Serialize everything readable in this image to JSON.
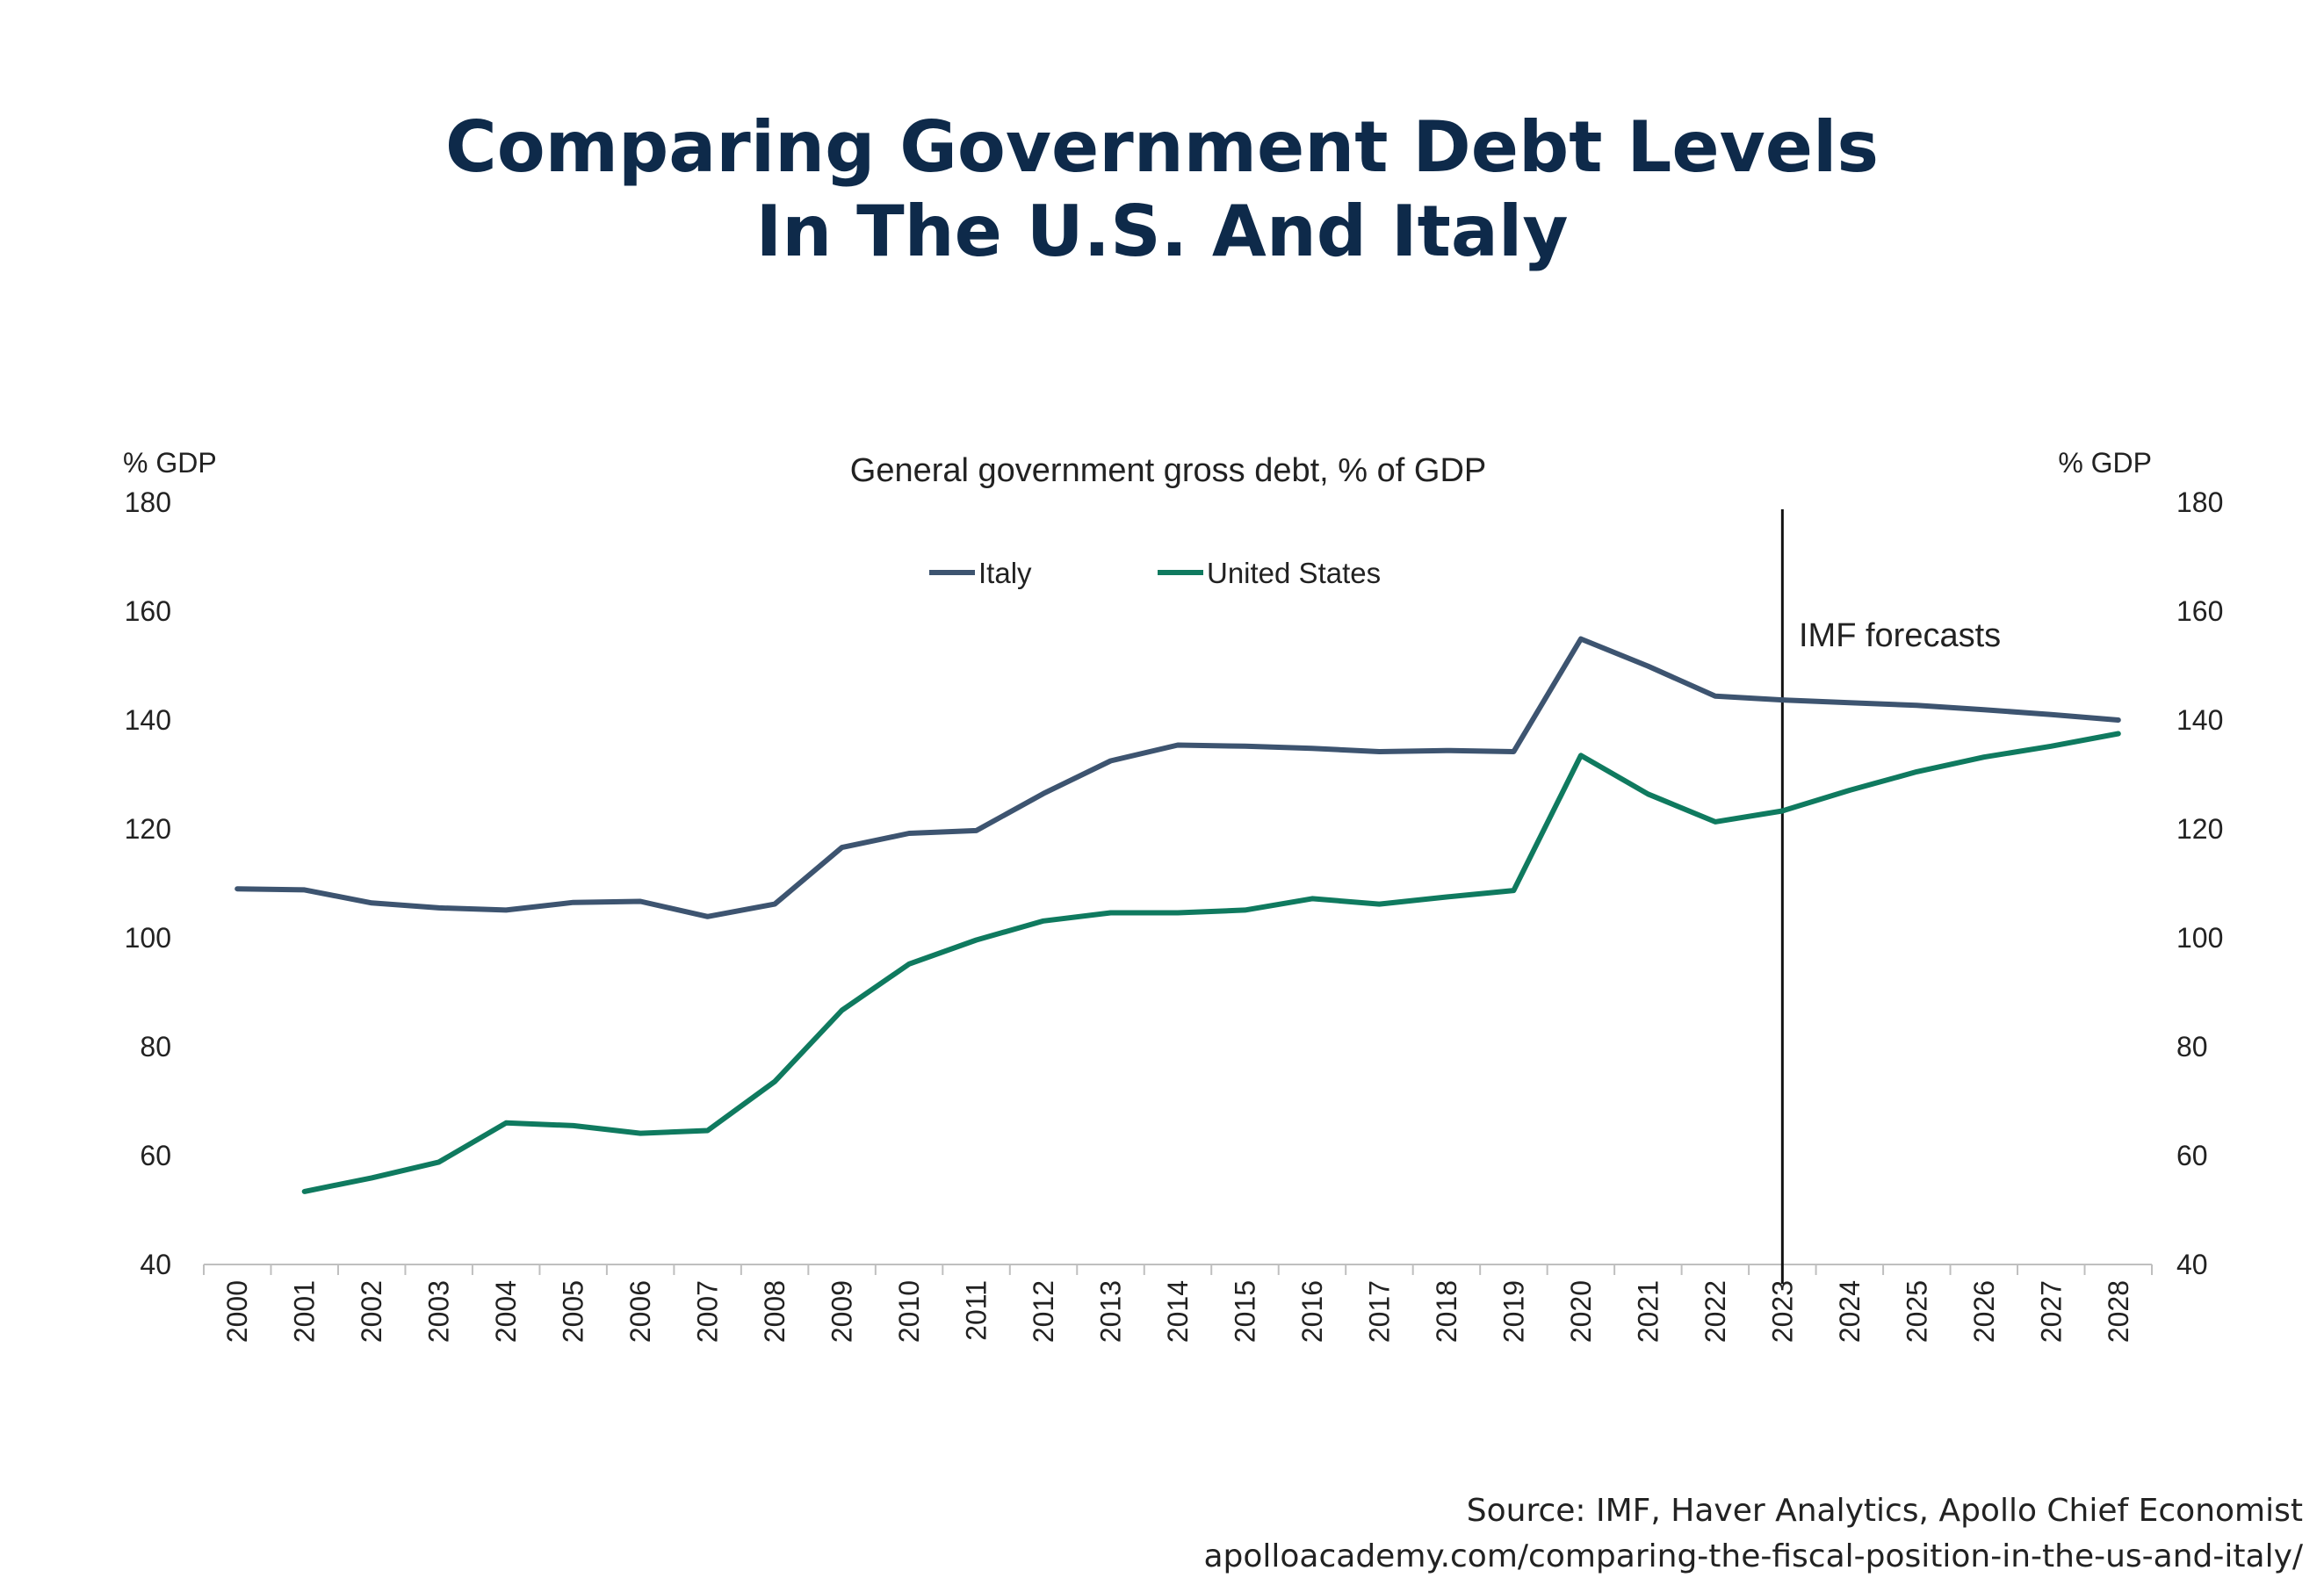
{
  "title": {
    "line1": "Comparing Government Debt Levels",
    "line2": "In The U.S. And Italy"
  },
  "footer": {
    "source": "Source: IMF, Haver Analytics, Apollo Chief Economist",
    "url": "apolloacademy.com/comparing-the-fiscal-position-in-the-us-and-italy/"
  },
  "chart_data": {
    "type": "line",
    "subtitle": "General government gross debt, % of GDP",
    "y_unit_left": "% GDP",
    "y_unit_right": "% GDP",
    "ylim": [
      40,
      180
    ],
    "yticks": [
      40,
      60,
      80,
      100,
      120,
      140,
      160,
      180
    ],
    "x": [
      "2000",
      "2001",
      "2002",
      "2003",
      "2004",
      "2005",
      "2006",
      "2007",
      "2008",
      "2009",
      "2010",
      "2011",
      "2012",
      "2013",
      "2014",
      "2015",
      "2016",
      "2017",
      "2018",
      "2019",
      "2020",
      "2021",
      "2022",
      "2023",
      "2024",
      "2025",
      "2026",
      "2027",
      "2028"
    ],
    "series": [
      {
        "name": "Italy",
        "color": "#3d5470",
        "values": [
          109.0,
          108.8,
          106.4,
          105.5,
          105.1,
          106.5,
          106.7,
          103.9,
          106.2,
          116.6,
          119.2,
          119.7,
          126.5,
          132.5,
          135.4,
          135.2,
          134.8,
          134.2,
          134.4,
          134.2,
          154.9,
          149.9,
          144.4,
          143.7,
          143.2,
          142.7,
          141.9,
          141.0,
          140.0
        ]
      },
      {
        "name": "United States",
        "color": "#0f7a5f",
        "values": [
          null,
          53.4,
          55.9,
          58.8,
          66.0,
          65.5,
          64.1,
          64.6,
          73.6,
          86.7,
          95.2,
          99.6,
          103.1,
          104.6,
          104.6,
          105.1,
          107.2,
          106.2,
          107.5,
          108.7,
          133.5,
          126.4,
          121.3,
          123.3,
          127.1,
          130.5,
          133.2,
          135.2,
          137.5
        ]
      }
    ],
    "annotation": {
      "label": "IMF forecasts",
      "at": "2023"
    },
    "legend_position": "top-center",
    "grid": false
  }
}
